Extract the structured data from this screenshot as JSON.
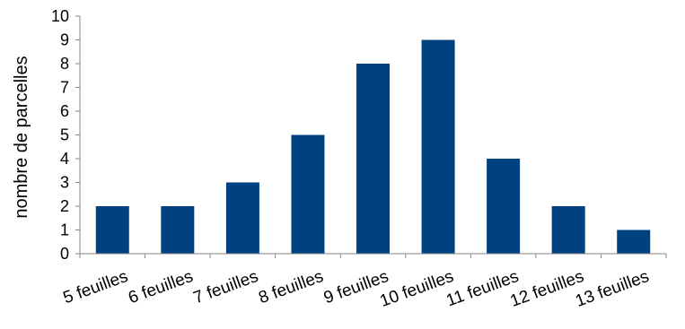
{
  "chart_data": {
    "type": "bar",
    "categories": [
      "5 feuilles",
      "6 feuilles",
      "7 feuilles",
      "8 feuilles",
      "9 feuilles",
      "10  feuilles",
      "11  feuilles",
      "12 feuilles",
      "13 feuilles"
    ],
    "values": [
      2,
      2,
      3,
      5,
      8,
      9,
      4,
      2,
      1
    ],
    "title": "",
    "xlabel": "",
    "ylabel": "nombre  de parcelles",
    "ylim": [
      0,
      10
    ],
    "yticks": [
      "0",
      "1",
      "2",
      "3",
      "4",
      "5",
      "6",
      "7",
      "8",
      "9",
      "10"
    ],
    "grid": false,
    "legend": "none",
    "bar_color": "#00427F",
    "axis_color": "#868686"
  }
}
